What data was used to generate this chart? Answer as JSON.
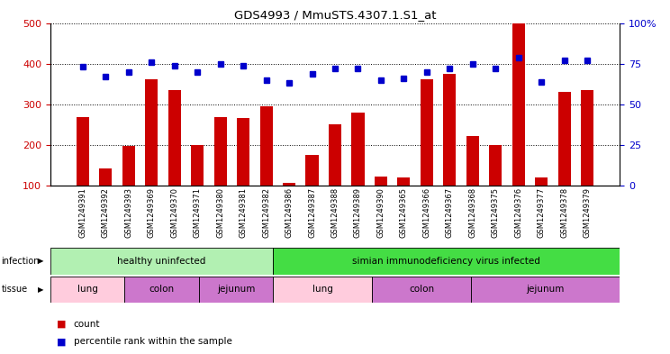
{
  "title": "GDS4993 / MmuSTS.4307.1.S1_at",
  "samples": [
    "GSM1249391",
    "GSM1249392",
    "GSM1249393",
    "GSM1249369",
    "GSM1249370",
    "GSM1249371",
    "GSM1249380",
    "GSM1249381",
    "GSM1249382",
    "GSM1249386",
    "GSM1249387",
    "GSM1249388",
    "GSM1249389",
    "GSM1249390",
    "GSM1249365",
    "GSM1249366",
    "GSM1249367",
    "GSM1249368",
    "GSM1249375",
    "GSM1249376",
    "GSM1249377",
    "GSM1249378",
    "GSM1249379"
  ],
  "bar_values": [
    268,
    142,
    197,
    362,
    335,
    200,
    268,
    266,
    295,
    108,
    175,
    252,
    281,
    122,
    120,
    362,
    375,
    222,
    200,
    498,
    120,
    330,
    335
  ],
  "dot_values": [
    73,
    67,
    70,
    76,
    74,
    70,
    75,
    74,
    65,
    63,
    69,
    72,
    72,
    65,
    66,
    70,
    72,
    75,
    72,
    79,
    64,
    77,
    77
  ],
  "infection_groups": [
    {
      "label": "healthy uninfected",
      "start": 0,
      "end": 9,
      "color": "#b2f0b2"
    },
    {
      "label": "simian immunodeficiency virus infected",
      "start": 9,
      "end": 23,
      "color": "#44dd44"
    }
  ],
  "tissue_groups": [
    {
      "label": "lung",
      "start": 0,
      "end": 3,
      "color": "#ffccdd"
    },
    {
      "label": "colon",
      "start": 3,
      "end": 6,
      "color": "#dd88dd"
    },
    {
      "label": "jejunum",
      "start": 6,
      "end": 9,
      "color": "#dd88dd"
    },
    {
      "label": "lung",
      "start": 9,
      "end": 13,
      "color": "#ffccdd"
    },
    {
      "label": "colon",
      "start": 13,
      "end": 17,
      "color": "#dd88dd"
    },
    {
      "label": "jejunum",
      "start": 17,
      "end": 23,
      "color": "#dd88dd"
    }
  ],
  "bar_color": "#cc0000",
  "dot_color": "#0000cc",
  "ylim_left": [
    100,
    500
  ],
  "ylim_right": [
    0,
    100
  ],
  "yticks_left": [
    100,
    200,
    300,
    400,
    500
  ],
  "yticks_right": [
    0,
    25,
    50,
    75,
    100
  ]
}
